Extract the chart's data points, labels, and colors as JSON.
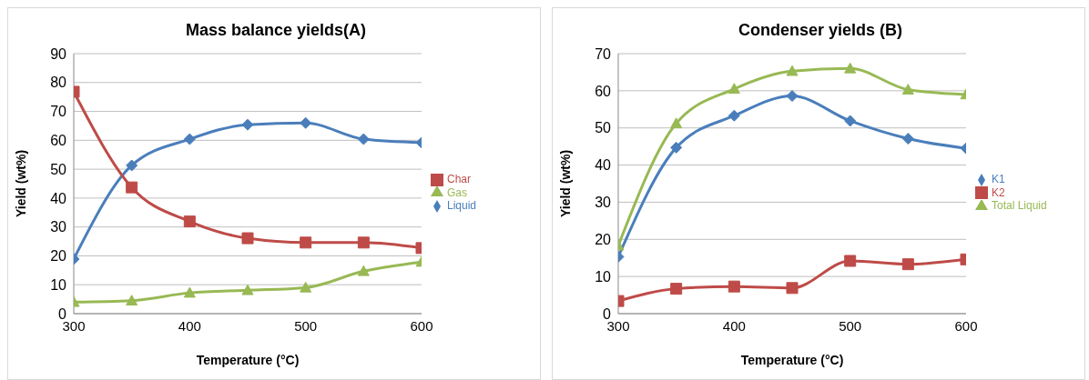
{
  "chart_data": [
    {
      "type": "line",
      "title": "Mass balance yields(A)",
      "xlabel": "Temperature (°C)",
      "ylabel": "Yield (wt%)",
      "x": [
        300,
        350,
        400,
        450,
        500,
        550,
        600
      ],
      "xlim": [
        300,
        600
      ],
      "xticks": [
        300,
        400,
        500,
        600
      ],
      "ylim": [
        0,
        90
      ],
      "yticks": [
        0,
        10,
        20,
        30,
        40,
        50,
        60,
        70,
        80,
        90
      ],
      "grid": "y",
      "legend": "right",
      "series": [
        {
          "name": "Liquid",
          "color": "#4a7ebb",
          "marker": "diamond",
          "values": [
            18.9,
            51.3,
            60.4,
            65.4,
            66.0,
            60.4,
            59.2
          ]
        },
        {
          "name": "Char",
          "color": "#be4b48",
          "marker": "square",
          "values": [
            76.8,
            43.7,
            31.9,
            26.1,
            24.6,
            24.6,
            22.7
          ]
        },
        {
          "name": "Gas",
          "color": "#98b954",
          "marker": "triangle",
          "values": [
            4.0,
            4.5,
            7.2,
            8.1,
            9.0,
            14.7,
            17.9
          ]
        }
      ]
    },
    {
      "type": "line",
      "title": "Condenser yields (B)",
      "xlabel": "Temperature (°C)",
      "ylabel": "Yield (wt%)",
      "x": [
        300,
        350,
        400,
        450,
        500,
        550,
        600
      ],
      "xlim": [
        300,
        600
      ],
      "xticks": [
        300,
        400,
        500,
        600
      ],
      "ylim": [
        0,
        70
      ],
      "yticks": [
        0,
        10,
        20,
        30,
        40,
        50,
        60,
        70
      ],
      "grid": "y",
      "legend": "right",
      "series": [
        {
          "name": "K1",
          "color": "#4a7ebb",
          "marker": "diamond",
          "values": [
            15.3,
            44.7,
            53.3,
            58.6,
            51.9,
            47.1,
            44.5
          ]
        },
        {
          "name": "K2",
          "color": "#be4b48",
          "marker": "square",
          "values": [
            3.4,
            6.7,
            7.3,
            6.9,
            14.2,
            13.3,
            14.6
          ]
        },
        {
          "name": "Total Liquid",
          "color": "#98b954",
          "marker": "triangle",
          "values": [
            18.3,
            51.2,
            60.5,
            65.3,
            66.0,
            60.3,
            59.0
          ]
        }
      ]
    }
  ]
}
